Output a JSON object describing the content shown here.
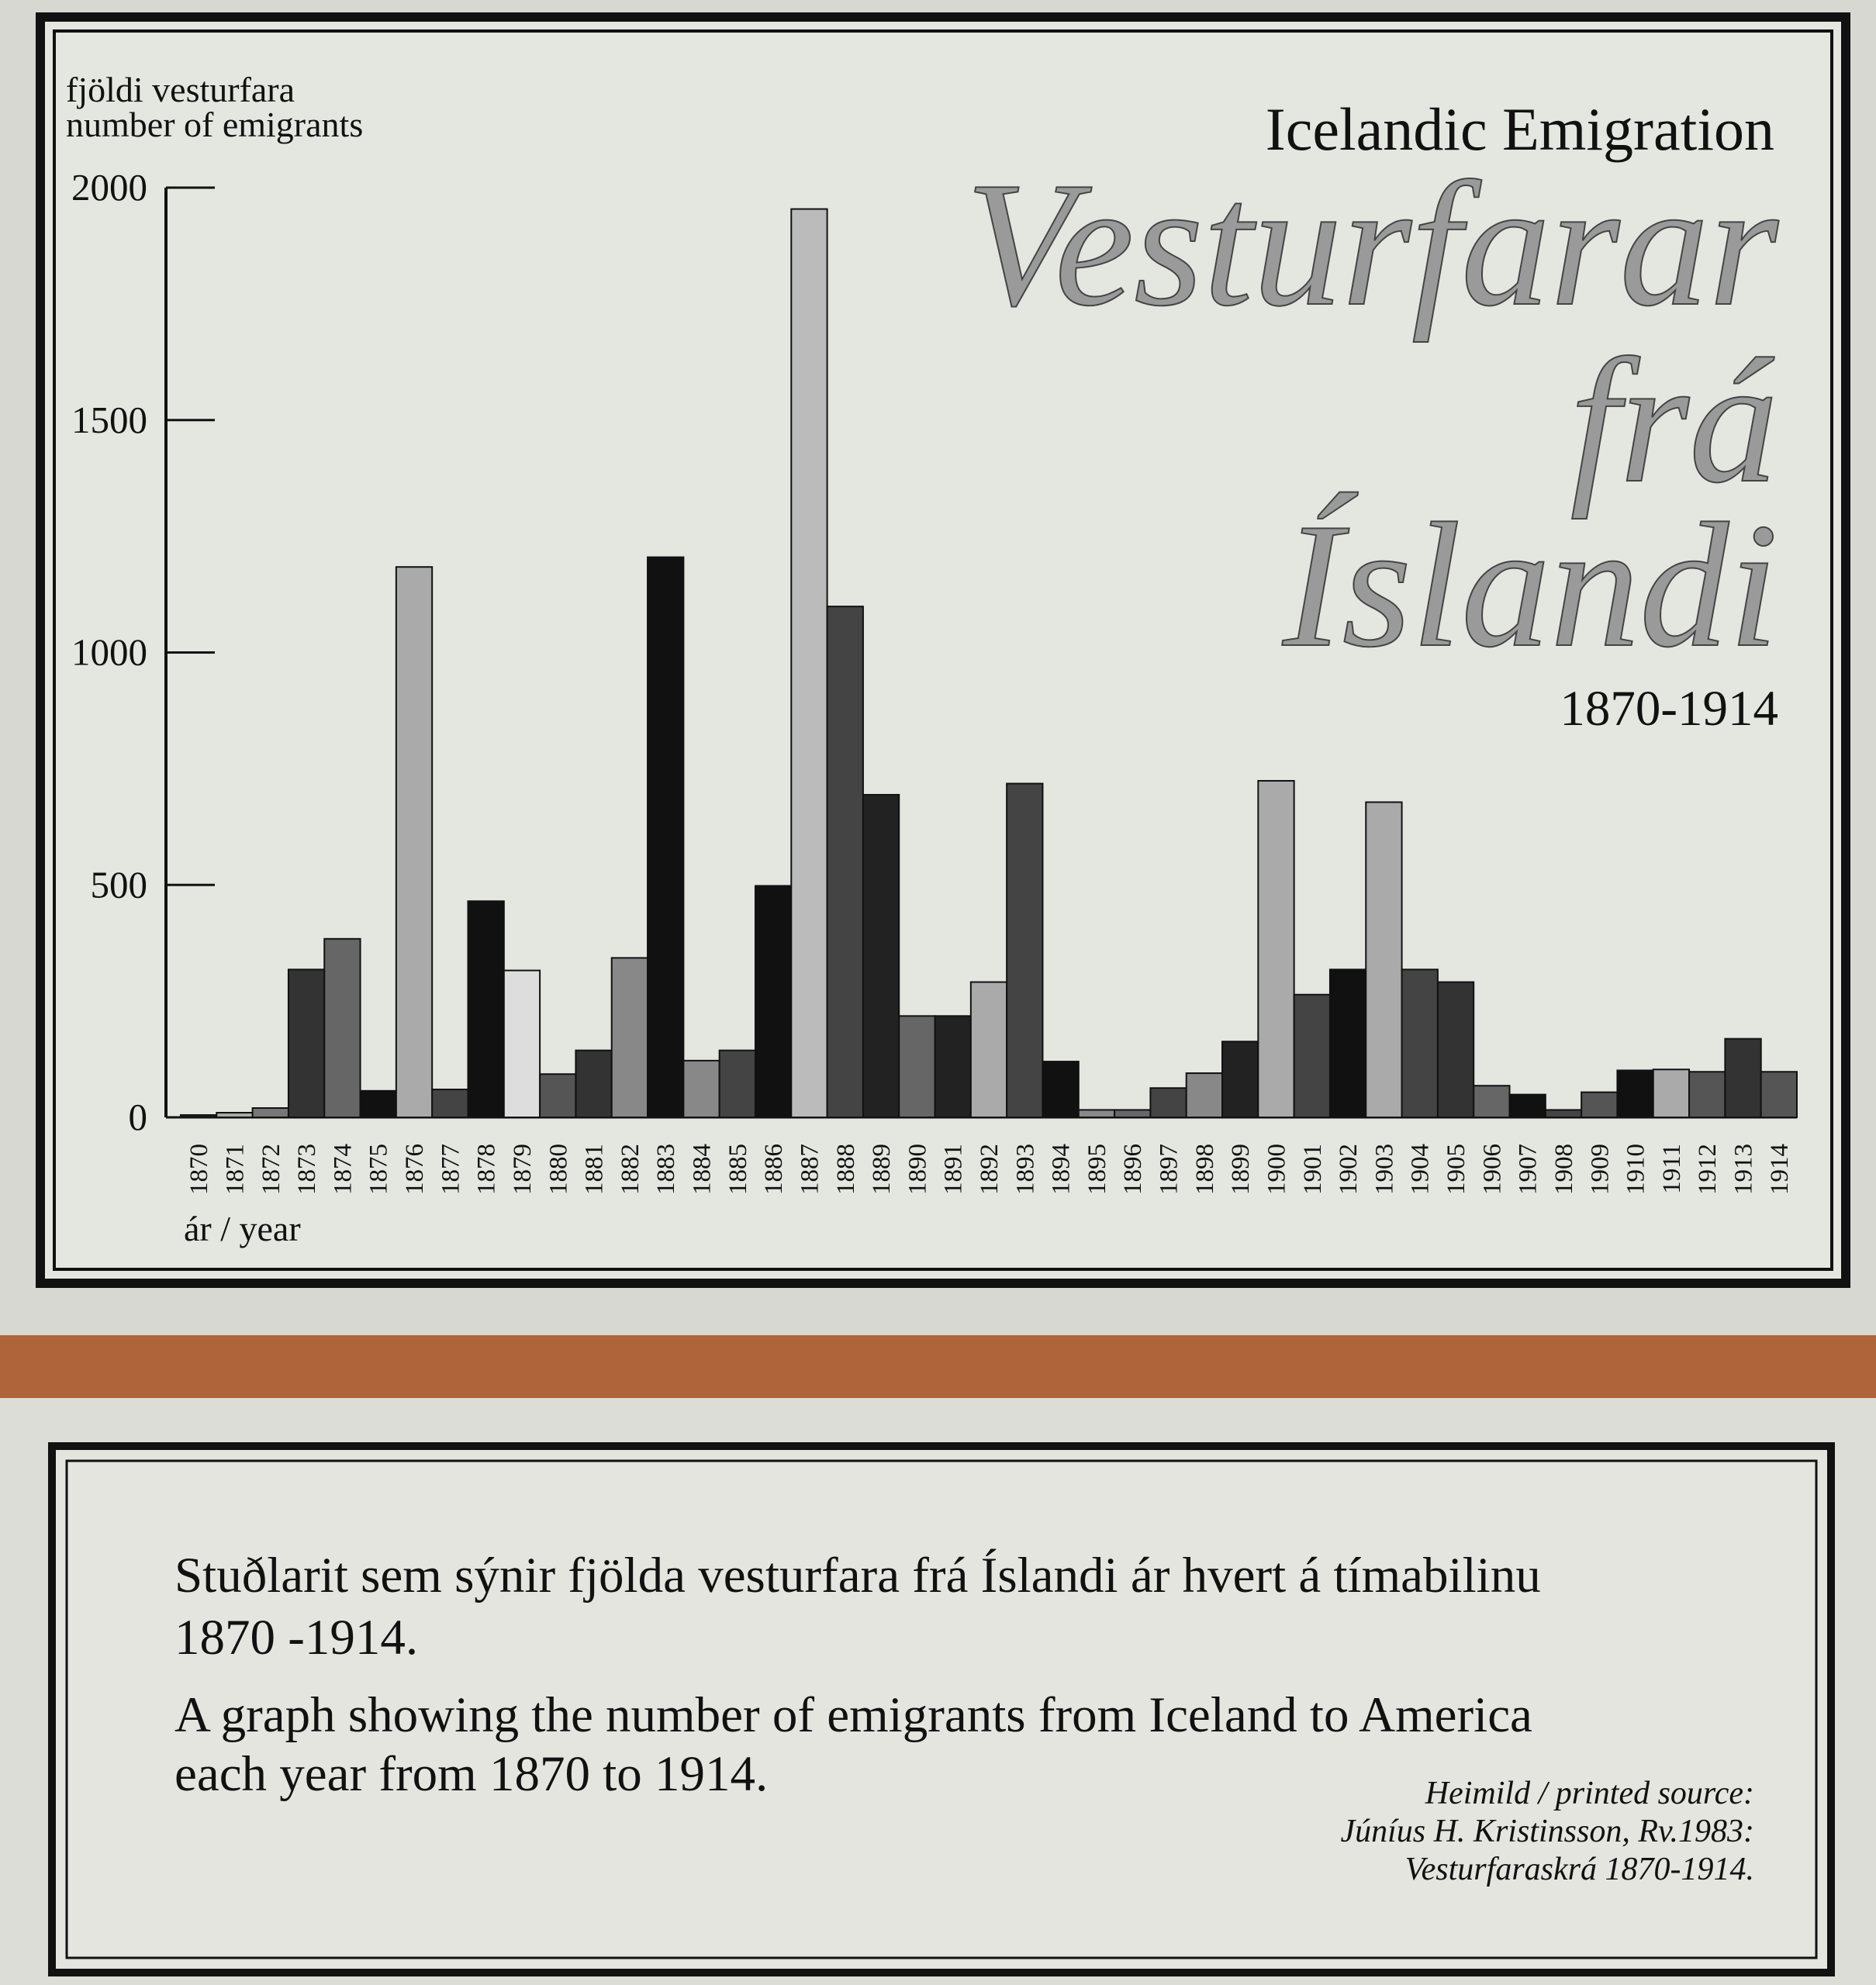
{
  "chart_data": {
    "type": "bar",
    "title": "Icelandic Emigration",
    "script_title": [
      "Vesturfarar",
      "frá",
      "Íslandi"
    ],
    "subtitle": "1870-1914",
    "ylabel": [
      "fjöldi vesturfara",
      "number of emigrants"
    ],
    "xlabel": "ár / year",
    "categories": [
      "1870",
      "1871",
      "1872",
      "1873",
      "1874",
      "1875",
      "1876",
      "1877",
      "1878",
      "1879",
      "1880",
      "1881",
      "1882",
      "1883",
      "1884",
      "1885",
      "1886",
      "1887",
      "1888",
      "1889",
      "1890",
      "1891",
      "1892",
      "1893",
      "1894",
      "1895",
      "1896",
      "1897",
      "1898",
      "1899",
      "1900",
      "1901",
      "1902",
      "1903",
      "1904",
      "1905",
      "1906",
      "1907",
      "1908",
      "1909",
      "1910",
      "1911",
      "1912",
      "1913",
      "1914"
    ],
    "values": [
      5,
      10,
      20,
      318,
      384,
      57,
      1184,
      60,
      465,
      316,
      93,
      144,
      343,
      1205,
      122,
      144,
      498,
      1954,
      1099,
      694,
      218,
      218,
      291,
      718,
      120,
      16,
      16,
      63,
      95,
      163,
      724,
      264,
      318,
      678,
      318,
      291,
      68,
      49,
      16,
      54,
      101,
      103,
      98,
      169,
      98
    ],
    "colors": [
      "#222",
      "#aaa",
      "#777",
      "#333",
      "#666",
      "#111",
      "#aaa",
      "#444",
      "#111",
      "#ddd",
      "#555",
      "#333",
      "#888",
      "#111",
      "#888",
      "#444",
      "#111",
      "#bbb",
      "#444",
      "#222",
      "#666",
      "#222",
      "#aaa",
      "#444",
      "#111",
      "#888",
      "#666",
      "#444",
      "#888",
      "#222",
      "#aaa",
      "#444",
      "#111",
      "#aaa",
      "#444",
      "#333",
      "#666",
      "#111",
      "#444",
      "#555",
      "#111",
      "#aaa",
      "#555",
      "#333",
      "#555"
    ],
    "ylim": [
      0,
      2000
    ],
    "yticks": [
      0,
      500,
      1000,
      1500,
      2000
    ]
  },
  "caption": {
    "icelandic": [
      "Stuðlarit sem sýnir fjölda vesturfara frá Íslandi ár hvert á tímabilinu",
      "1870 -1914."
    ],
    "english": [
      "A graph showing the number of emigrants from Iceland to America",
      "each year from 1870 to 1914."
    ],
    "source": [
      "Heimild / printed source:",
      "Júníus H. Kristinsson, Rv.1983:",
      "Vesturfaraskrá 1870-1914."
    ]
  }
}
